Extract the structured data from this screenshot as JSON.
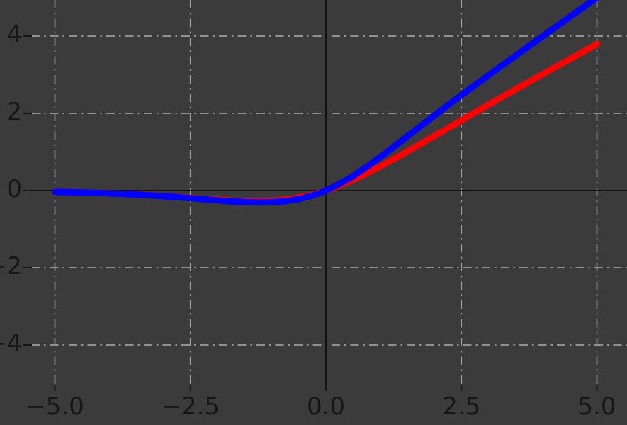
{
  "figure": {
    "background_color": "#3b3b3b",
    "grid_color": "#a3a3a3",
    "axis_line_color": "#121212",
    "tick_color": "#161616",
    "tick_text_color": "#161616",
    "blue_curve_color": "#0000ff",
    "red_curve_color": "#ff0000"
  },
  "axes": {
    "x_ticks": [
      {
        "value": -5.0,
        "label": "−5.0"
      },
      {
        "value": -2.5,
        "label": "−2.5"
      },
      {
        "value": 0.0,
        "label": "0.0"
      },
      {
        "value": 2.5,
        "label": "2.5"
      },
      {
        "value": 5.0,
        "label": "5.0"
      }
    ],
    "y_ticks": [
      {
        "value": 4,
        "label": "4"
      },
      {
        "value": 2,
        "label": "2"
      },
      {
        "value": 0,
        "label": "0"
      },
      {
        "value": -2,
        "label": "−2"
      },
      {
        "value": -4,
        "label": "−4"
      }
    ],
    "grid_style": "dash-dot",
    "spines_at_zero": true
  },
  "chart_data": {
    "type": "line",
    "title": "",
    "xlabel": "",
    "ylabel": "",
    "legend": false,
    "grid": true,
    "x_range_of_data": [
      -5,
      5
    ],
    "xlim_visible": [
      -5.45,
      5.56
    ],
    "ylim_visible": [
      -5.03,
      4.94
    ],
    "x": [
      -5,
      -4.75,
      -4.5,
      -4.25,
      -4,
      -3.75,
      -3.5,
      -3.25,
      -3,
      -2.75,
      -2.5,
      -2.25,
      -2,
      -1.75,
      -1.5,
      -1.25,
      -1,
      -0.75,
      -0.5,
      -0.25,
      0,
      0.25,
      0.5,
      0.75,
      1,
      1.25,
      1.5,
      1.75,
      2,
      2.25,
      2.5,
      2.75,
      3,
      3.25,
      3.5,
      3.75,
      4,
      4.25,
      4.5,
      4.75,
      5
    ],
    "series": [
      {
        "name": "red",
        "color": "#ff0000",
        "values": [
          -0.033,
          -0.041,
          -0.049,
          -0.06,
          -0.072,
          -0.086,
          -0.103,
          -0.121,
          -0.142,
          -0.165,
          -0.189,
          -0.214,
          -0.237,
          -0.257,
          -0.271,
          -0.274,
          -0.263,
          -0.233,
          -0.18,
          -0.103,
          0,
          0.127,
          0.276,
          0.444,
          0.624,
          0.814,
          1.011,
          1.212,
          1.414,
          1.617,
          1.82,
          2.022,
          2.223,
          2.423,
          2.622,
          2.819,
          3.016,
          3.211,
          3.406,
          3.6,
          3.794
        ]
      },
      {
        "name": "blue",
        "color": "#0000ff",
        "values": [
          -0.034,
          -0.041,
          -0.05,
          -0.06,
          -0.073,
          -0.087,
          -0.104,
          -0.124,
          -0.146,
          -0.17,
          -0.197,
          -0.225,
          -0.253,
          -0.278,
          -0.298,
          -0.309,
          -0.303,
          -0.277,
          -0.221,
          -0.13,
          0,
          0.17,
          0.375,
          0.61,
          0.865,
          1.132,
          1.403,
          1.674,
          1.943,
          2.209,
          2.472,
          2.731,
          2.988,
          3.241,
          3.494,
          3.746,
          3.997,
          4.248,
          4.499,
          4.749,
          5.0
        ]
      }
    ]
  }
}
